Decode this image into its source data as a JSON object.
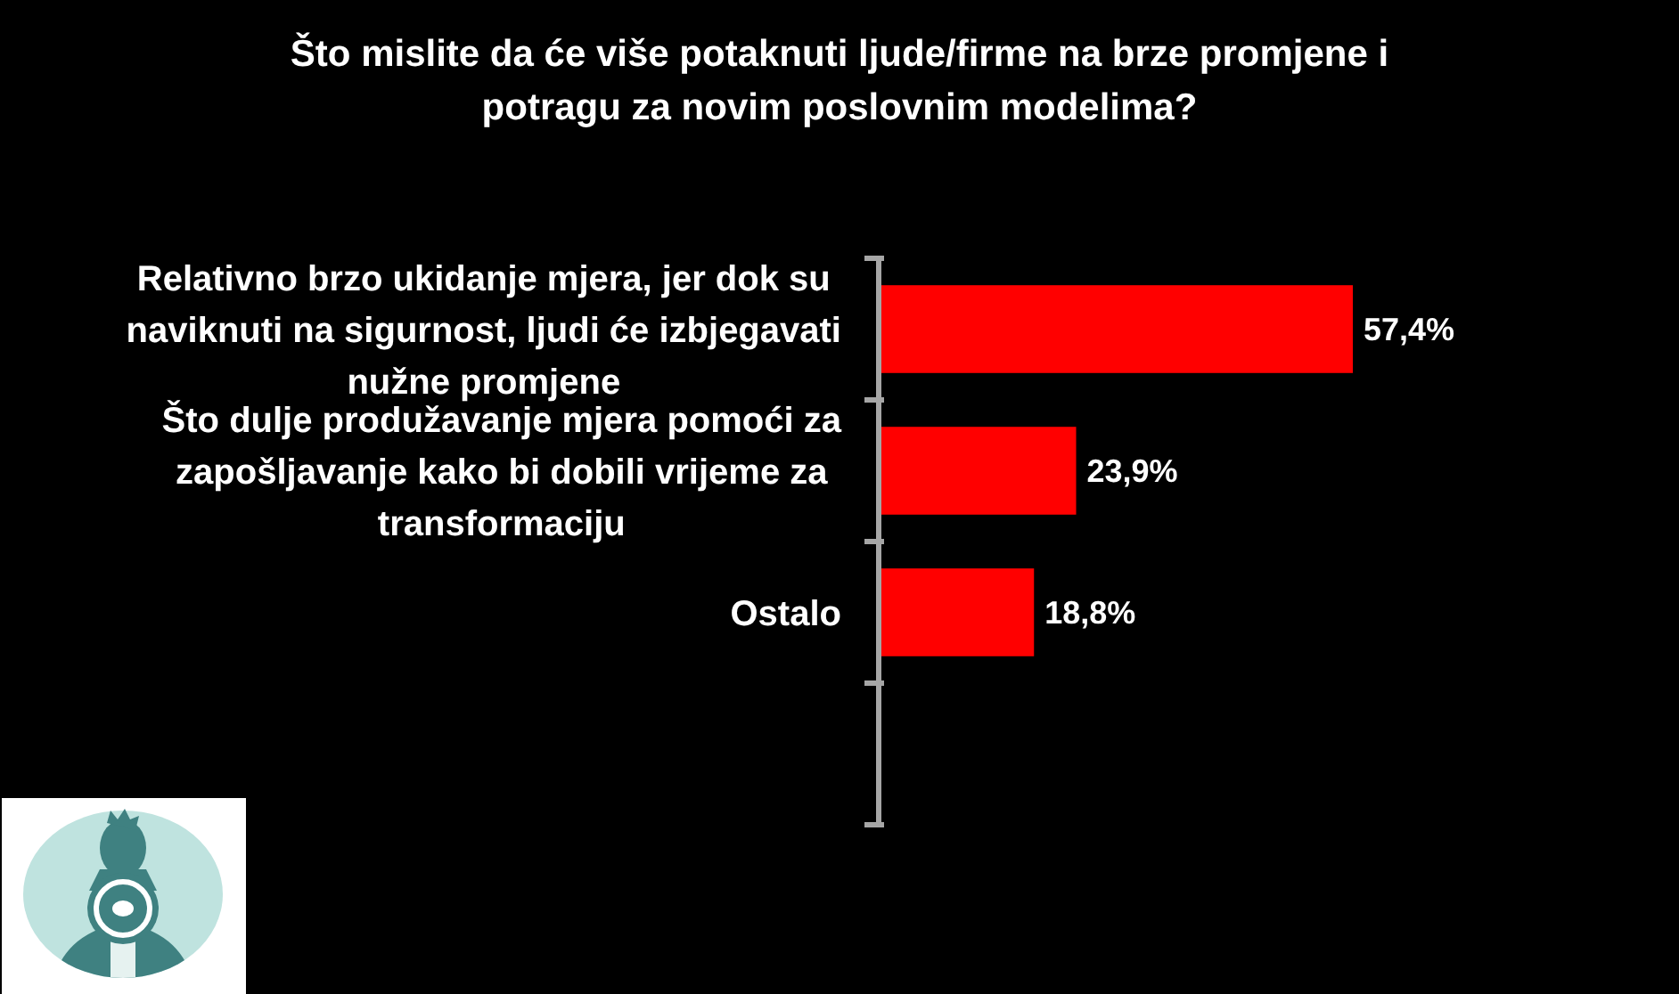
{
  "chart_data": {
    "type": "bar",
    "orientation": "horizontal",
    "title": "Što mislite da će više potaknuti ljude/firme na brze promjene i potragu za novim poslovnim modelima?",
    "categories": [
      "Relativno brzo ukidanje mjera, jer dok su naviknuti na sigurnost, ljudi će izbjegavati nužne promjene",
      "Što dulje produžavanje mjera pomoći za zapošljavanje kako bi dobili vrijeme za transformaciju",
      "Ostalo",
      null
    ],
    "values": [
      57.4,
      23.9,
      18.8,
      null
    ],
    "color": "#ff0000",
    "value_labels": [
      "57,4%",
      "23,9%",
      "18,8%",
      null
    ],
    "tick_labels": "y"
  }
}
